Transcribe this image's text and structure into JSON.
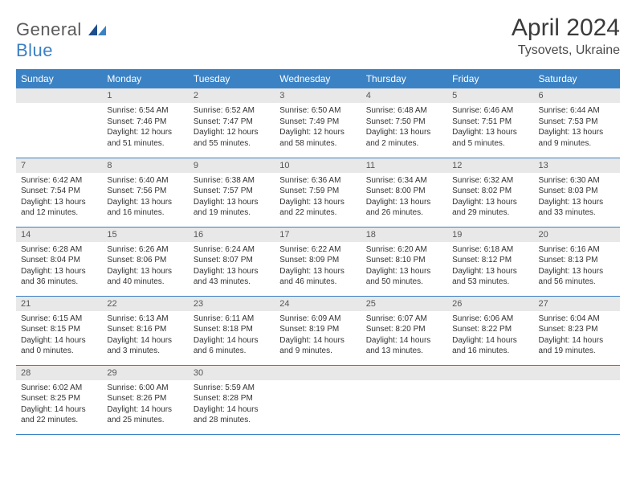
{
  "logo": {
    "word1": "General",
    "word2": "Blue"
  },
  "header": {
    "title": "April 2024",
    "location": "Tysovets, Ukraine"
  },
  "colors": {
    "header_bg": "#3b82c4",
    "header_text": "#ffffff",
    "daynum_bg": "#e8e8e8",
    "daynum_text": "#555555",
    "border": "#3b82c4",
    "body_text": "#333333"
  },
  "weekdays": [
    "Sunday",
    "Monday",
    "Tuesday",
    "Wednesday",
    "Thursday",
    "Friday",
    "Saturday"
  ],
  "weeks": [
    [
      null,
      {
        "n": "1",
        "sunrise": "6:54 AM",
        "sunset": "7:46 PM",
        "daylight": "12 hours and 51 minutes."
      },
      {
        "n": "2",
        "sunrise": "6:52 AM",
        "sunset": "7:47 PM",
        "daylight": "12 hours and 55 minutes."
      },
      {
        "n": "3",
        "sunrise": "6:50 AM",
        "sunset": "7:49 PM",
        "daylight": "12 hours and 58 minutes."
      },
      {
        "n": "4",
        "sunrise": "6:48 AM",
        "sunset": "7:50 PM",
        "daylight": "13 hours and 2 minutes."
      },
      {
        "n": "5",
        "sunrise": "6:46 AM",
        "sunset": "7:51 PM",
        "daylight": "13 hours and 5 minutes."
      },
      {
        "n": "6",
        "sunrise": "6:44 AM",
        "sunset": "7:53 PM",
        "daylight": "13 hours and 9 minutes."
      }
    ],
    [
      {
        "n": "7",
        "sunrise": "6:42 AM",
        "sunset": "7:54 PM",
        "daylight": "13 hours and 12 minutes."
      },
      {
        "n": "8",
        "sunrise": "6:40 AM",
        "sunset": "7:56 PM",
        "daylight": "13 hours and 16 minutes."
      },
      {
        "n": "9",
        "sunrise": "6:38 AM",
        "sunset": "7:57 PM",
        "daylight": "13 hours and 19 minutes."
      },
      {
        "n": "10",
        "sunrise": "6:36 AM",
        "sunset": "7:59 PM",
        "daylight": "13 hours and 22 minutes."
      },
      {
        "n": "11",
        "sunrise": "6:34 AM",
        "sunset": "8:00 PM",
        "daylight": "13 hours and 26 minutes."
      },
      {
        "n": "12",
        "sunrise": "6:32 AM",
        "sunset": "8:02 PM",
        "daylight": "13 hours and 29 minutes."
      },
      {
        "n": "13",
        "sunrise": "6:30 AM",
        "sunset": "8:03 PM",
        "daylight": "13 hours and 33 minutes."
      }
    ],
    [
      {
        "n": "14",
        "sunrise": "6:28 AM",
        "sunset": "8:04 PM",
        "daylight": "13 hours and 36 minutes."
      },
      {
        "n": "15",
        "sunrise": "6:26 AM",
        "sunset": "8:06 PM",
        "daylight": "13 hours and 40 minutes."
      },
      {
        "n": "16",
        "sunrise": "6:24 AM",
        "sunset": "8:07 PM",
        "daylight": "13 hours and 43 minutes."
      },
      {
        "n": "17",
        "sunrise": "6:22 AM",
        "sunset": "8:09 PM",
        "daylight": "13 hours and 46 minutes."
      },
      {
        "n": "18",
        "sunrise": "6:20 AM",
        "sunset": "8:10 PM",
        "daylight": "13 hours and 50 minutes."
      },
      {
        "n": "19",
        "sunrise": "6:18 AM",
        "sunset": "8:12 PM",
        "daylight": "13 hours and 53 minutes."
      },
      {
        "n": "20",
        "sunrise": "6:16 AM",
        "sunset": "8:13 PM",
        "daylight": "13 hours and 56 minutes."
      }
    ],
    [
      {
        "n": "21",
        "sunrise": "6:15 AM",
        "sunset": "8:15 PM",
        "daylight": "14 hours and 0 minutes."
      },
      {
        "n": "22",
        "sunrise": "6:13 AM",
        "sunset": "8:16 PM",
        "daylight": "14 hours and 3 minutes."
      },
      {
        "n": "23",
        "sunrise": "6:11 AM",
        "sunset": "8:18 PM",
        "daylight": "14 hours and 6 minutes."
      },
      {
        "n": "24",
        "sunrise": "6:09 AM",
        "sunset": "8:19 PM",
        "daylight": "14 hours and 9 minutes."
      },
      {
        "n": "25",
        "sunrise": "6:07 AM",
        "sunset": "8:20 PM",
        "daylight": "14 hours and 13 minutes."
      },
      {
        "n": "26",
        "sunrise": "6:06 AM",
        "sunset": "8:22 PM",
        "daylight": "14 hours and 16 minutes."
      },
      {
        "n": "27",
        "sunrise": "6:04 AM",
        "sunset": "8:23 PM",
        "daylight": "14 hours and 19 minutes."
      }
    ],
    [
      {
        "n": "28",
        "sunrise": "6:02 AM",
        "sunset": "8:25 PM",
        "daylight": "14 hours and 22 minutes."
      },
      {
        "n": "29",
        "sunrise": "6:00 AM",
        "sunset": "8:26 PM",
        "daylight": "14 hours and 25 minutes."
      },
      {
        "n": "30",
        "sunrise": "5:59 AM",
        "sunset": "8:28 PM",
        "daylight": "14 hours and 28 minutes."
      },
      null,
      null,
      null,
      null
    ]
  ]
}
